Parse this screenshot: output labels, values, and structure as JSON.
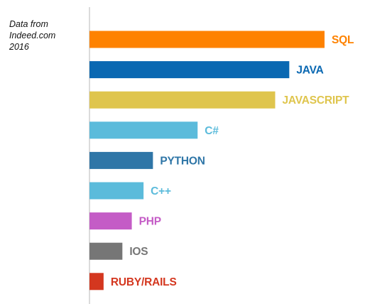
{
  "source_note": {
    "line1": "Data from",
    "line2": "Indeed.com",
    "line3": "2016"
  },
  "chart_data": {
    "type": "bar",
    "orientation": "horizontal",
    "title": "",
    "xlabel": "",
    "ylabel": "",
    "grid": false,
    "legend": "none",
    "xlim": [
      0,
      100
    ],
    "categories": [
      "SQL",
      "JAVA",
      "JAVASCRIPT",
      "C#",
      "PYTHON",
      "C++",
      "PHP",
      "IOS",
      "RUBY/RAILS"
    ],
    "values": [
      100,
      85,
      79,
      46,
      27,
      23,
      18,
      14,
      6
    ],
    "colors": [
      "#fe8200",
      "#0a68b2",
      "#dfc54d",
      "#5bbbdb",
      "#2f76a7",
      "#5bbbdb",
      "#c45cc6",
      "#767676",
      "#d4371f"
    ]
  }
}
